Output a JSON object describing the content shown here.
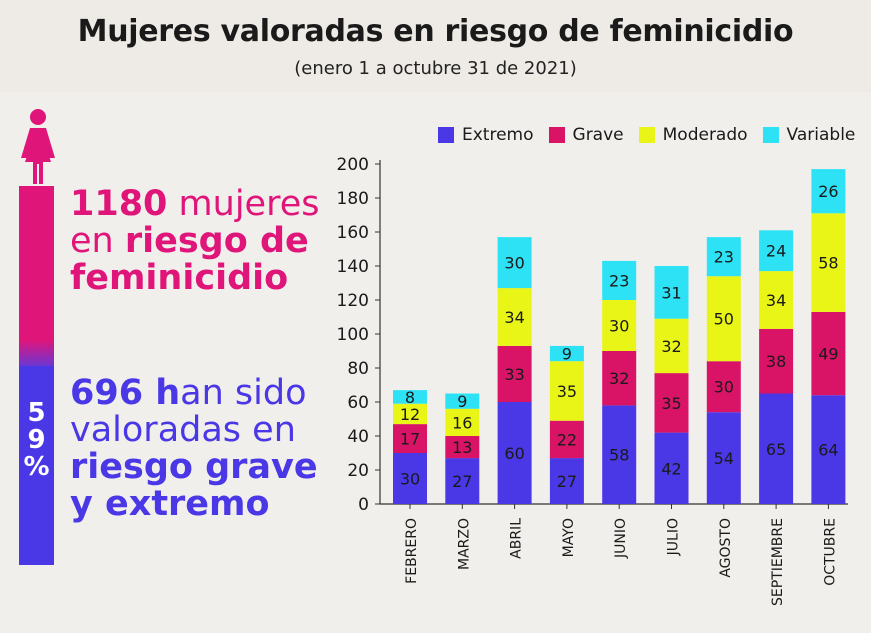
{
  "header": {
    "title": "Mujeres valoradas en riesgo de feminicidio",
    "subtitle": "(enero 1 a octubre 31 de 2021)"
  },
  "infographic": {
    "total_number": "1180",
    "total_text_1": " mujeres",
    "total_text_2": "en ",
    "total_text_3": "riesgo de",
    "total_text_4": "feminicidio",
    "severe_number": "696 h",
    "severe_text_1": "an sido",
    "severe_text_2": "valoradas en",
    "severe_text_3": "riesgo grave",
    "severe_text_4": "y extremo",
    "percent_chars": [
      "5",
      "9",
      "%"
    ],
    "icon": "woman-icon"
  },
  "colors": {
    "extremo": "#4a37e6",
    "grave": "#d91467",
    "moderado": "#e9f516",
    "variable": "#2ee2f5",
    "pink": "#e0157a"
  },
  "chart_data": {
    "type": "bar",
    "stacked": true,
    "categories": [
      "FEBRERO",
      "MARZO",
      "ABRIL",
      "MAYO",
      "JUNIO",
      "JULIO",
      "AGOSTO",
      "SEPTIEMBRE",
      "OCTUBRE"
    ],
    "series": [
      {
        "name": "Extremo",
        "values": [
          30,
          27,
          60,
          27,
          58,
          42,
          54,
          65,
          64
        ]
      },
      {
        "name": "Grave",
        "values": [
          17,
          13,
          33,
          22,
          32,
          35,
          30,
          38,
          49
        ]
      },
      {
        "name": "Moderado",
        "values": [
          12,
          16,
          34,
          35,
          30,
          32,
          50,
          34,
          58
        ]
      },
      {
        "name": "Variable",
        "values": [
          8,
          9,
          30,
          9,
          23,
          31,
          23,
          24,
          26
        ]
      }
    ],
    "ylim": [
      0,
      200
    ],
    "yticks": [
      0,
      20,
      40,
      60,
      80,
      100,
      120,
      140,
      160,
      180,
      200
    ],
    "legend_position": "top-right",
    "grid": false
  }
}
